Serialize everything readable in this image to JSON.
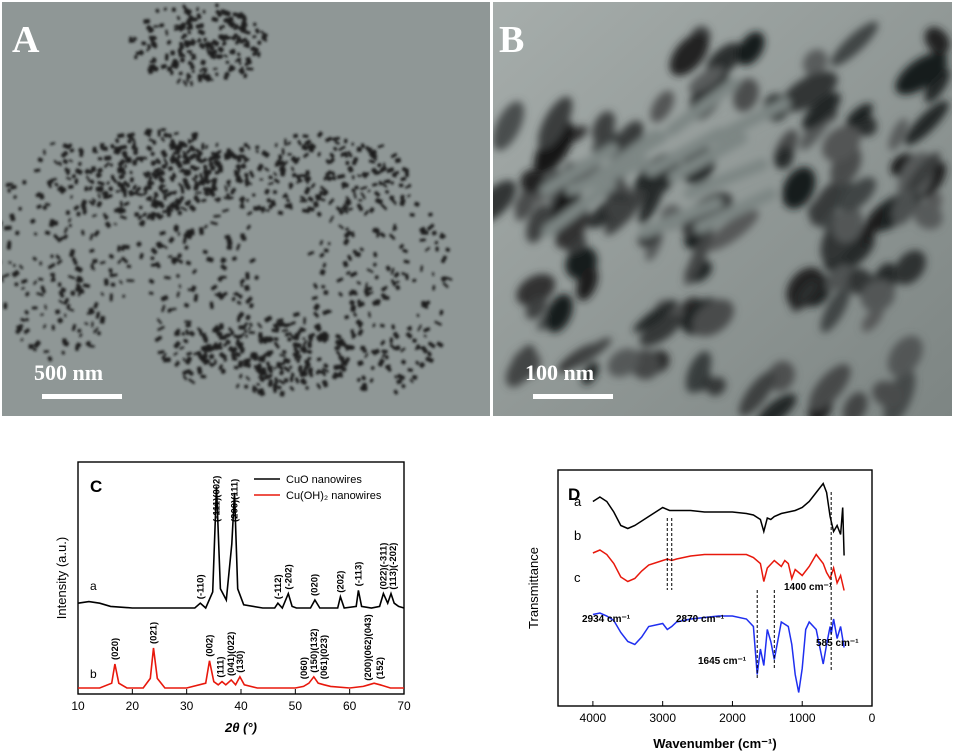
{
  "panels": {
    "A": {
      "letter": "A",
      "scale_label": "500 nm"
    },
    "B": {
      "letter": "B",
      "scale_label": "100 nm"
    }
  },
  "chart_data": [
    {
      "type": "line",
      "panel": "C",
      "xlabel": "2θ (°)",
      "ylabel": "Intensity (a.u.)",
      "xlim": [
        10,
        70
      ],
      "xticks": [
        "10",
        "20",
        "30",
        "40",
        "50",
        "60",
        "70"
      ],
      "legend_position": "top-right",
      "series": [
        {
          "name": "CuO nanowires",
          "label": "a",
          "color": "#000000",
          "x": [
            10,
            12,
            14,
            16,
            20,
            25,
            30,
            31.5,
            32.5,
            33.5,
            34.8,
            35.5,
            36.2,
            37.3,
            38.3,
            38.8,
            39.4,
            40.5,
            44,
            46.2,
            46.8,
            47.6,
            48.7,
            49.4,
            50.2,
            52.8,
            53.6,
            54.5,
            57.8,
            58.3,
            59,
            61.2,
            61.6,
            62.2,
            64,
            65.5,
            66.2,
            67,
            67.6,
            68.2,
            69,
            70
          ],
          "y": [
            3,
            4,
            3,
            1,
            0,
            0,
            0,
            0,
            3,
            0,
            10,
            76,
            12,
            5,
            40,
            72,
            12,
            2,
            0,
            0,
            3,
            0,
            9,
            1,
            0,
            0,
            5,
            0,
            0,
            7,
            0,
            1,
            11,
            1,
            0,
            1,
            9,
            3,
            9,
            3,
            1,
            0
          ]
        },
        {
          "name": "Cu(OH)₂ nanowires",
          "label": "b",
          "color": "#e8180c",
          "x": [
            10,
            14,
            16.2,
            16.8,
            17.5,
            19,
            22,
            23.3,
            23.9,
            24.6,
            26,
            30,
            33.5,
            34.2,
            35,
            35.8,
            36.5,
            37.2,
            38.2,
            39,
            39.8,
            40.6,
            43,
            47,
            50,
            51.5,
            52.5,
            53.4,
            54.2,
            55.3,
            56.5,
            60,
            62.5,
            63.5,
            64.5,
            65.6,
            67.5,
            70
          ],
          "y": [
            0,
            0,
            3,
            15,
            3,
            0,
            0,
            6,
            25,
            6,
            0,
            0,
            3,
            17,
            4,
            2,
            4,
            2,
            5,
            2,
            7,
            2,
            0,
            0,
            0,
            1,
            3,
            7,
            3,
            2,
            1,
            0,
            1,
            2,
            3,
            2,
            0,
            0
          ]
        }
      ],
      "peak_labels": [
        {
          "text": "(-110)",
          "x": 32.5
        },
        {
          "text": "(-111)(002)",
          "x": 35.5
        },
        {
          "text": "(200)(111)",
          "x": 38.8
        },
        {
          "text": "(-112)",
          "x": 46.8
        },
        {
          "text": "(-202)",
          "x": 48.7
        },
        {
          "text": "(020)",
          "x": 53.5
        },
        {
          "text": "(202)",
          "x": 58.3
        },
        {
          "text": "(-113)",
          "x": 61.6
        },
        {
          "text": "(022)(-311)",
          "x": 66.2
        },
        {
          "text": "(113)(-202)",
          "x": 68.0
        },
        {
          "text": "(020)",
          "x": 16.8
        },
        {
          "text": "(021)",
          "x": 23.9
        },
        {
          "text": "(002)",
          "x": 34.2
        },
        {
          "text": "(111)",
          "x": 36.2
        },
        {
          "text": "(041)(022)",
          "x": 38.2
        },
        {
          "text": "(130)",
          "x": 39.8
        },
        {
          "text": "(060)",
          "x": 51.6
        },
        {
          "text": "(150)(132)",
          "x": 53.4
        },
        {
          "text": "(061)(023)",
          "x": 55.3
        },
        {
          "text": "(200)(062)(043)",
          "x": 63.4
        },
        {
          "text": "(152)",
          "x": 65.6
        }
      ]
    },
    {
      "type": "line",
      "panel": "D",
      "xlabel": "Wavenumber (cm⁻¹)",
      "ylabel": "Transmittance",
      "xlim": [
        4500,
        0
      ],
      "xticks": [
        "4000",
        "3000",
        "2000",
        "1000",
        "0"
      ],
      "series": [
        {
          "label": "a",
          "color": "#000000",
          "x": [
            4000,
            3900,
            3800,
            3700,
            3600,
            3500,
            3400,
            3200,
            3000,
            2900,
            2800,
            2600,
            2400,
            2200,
            2000,
            1800,
            1700,
            1600,
            1550,
            1500,
            1450,
            1400,
            1300,
            1200,
            1100,
            1000,
            900,
            800,
            700,
            650,
            600,
            550,
            500,
            450,
            420,
            400
          ],
          "y": [
            82,
            85,
            82,
            75,
            66,
            64,
            66,
            72,
            78,
            76,
            76,
            76,
            75,
            75,
            75,
            74,
            73,
            70,
            62,
            71,
            70,
            72,
            74,
            75,
            76,
            78,
            82,
            88,
            94,
            88,
            72,
            62,
            66,
            60,
            78,
            46
          ]
        },
        {
          "label": "b",
          "color": "#e8180c",
          "x": [
            4000,
            3900,
            3800,
            3700,
            3600,
            3500,
            3400,
            3300,
            3200,
            3000,
            2934,
            2870,
            2800,
            2600,
            2400,
            2200,
            2000,
            1800,
            1700,
            1600,
            1550,
            1500,
            1400,
            1300,
            1250,
            1200,
            1150,
            1100,
            1000,
            900,
            800,
            700,
            650,
            600,
            550,
            500,
            450,
            400
          ],
          "y": [
            65,
            67,
            64,
            58,
            49,
            46,
            48,
            53,
            57,
            60,
            61,
            60,
            61,
            63,
            64,
            64,
            64,
            64,
            62,
            58,
            46,
            55,
            60,
            56,
            60,
            58,
            48,
            54,
            50,
            56,
            64,
            58,
            52,
            48,
            55,
            45,
            50,
            40
          ]
        },
        {
          "label": "c",
          "color": "#1f2ff0",
          "x": [
            4000,
            3900,
            3800,
            3700,
            3600,
            3500,
            3400,
            3300,
            3200,
            3000,
            2934,
            2870,
            2800,
            2600,
            2400,
            2200,
            2000,
            1800,
            1700,
            1645,
            1600,
            1550,
            1500,
            1450,
            1400,
            1300,
            1200,
            1150,
            1100,
            1050,
            1000,
            950,
            900,
            800,
            700,
            650,
            600,
            585,
            550,
            500,
            450,
            400
          ],
          "y": [
            48,
            49,
            47,
            44,
            36,
            30,
            28,
            33,
            40,
            42,
            38,
            40,
            43,
            45,
            46,
            47,
            47,
            45,
            40,
            8,
            25,
            14,
            38,
            30,
            18,
            43,
            40,
            28,
            8,
            -4,
            12,
            38,
            43,
            38,
            15,
            28,
            40,
            35,
            45,
            32,
            40,
            26
          ]
        }
      ],
      "annotations": [
        {
          "text": "2934 cm⁻¹"
        },
        {
          "text": "2870 cm⁻¹"
        },
        {
          "text": "1400 cm⁻¹"
        },
        {
          "text": "1645 cm⁻¹"
        },
        {
          "text": "585 cm⁻¹"
        }
      ]
    }
  ]
}
